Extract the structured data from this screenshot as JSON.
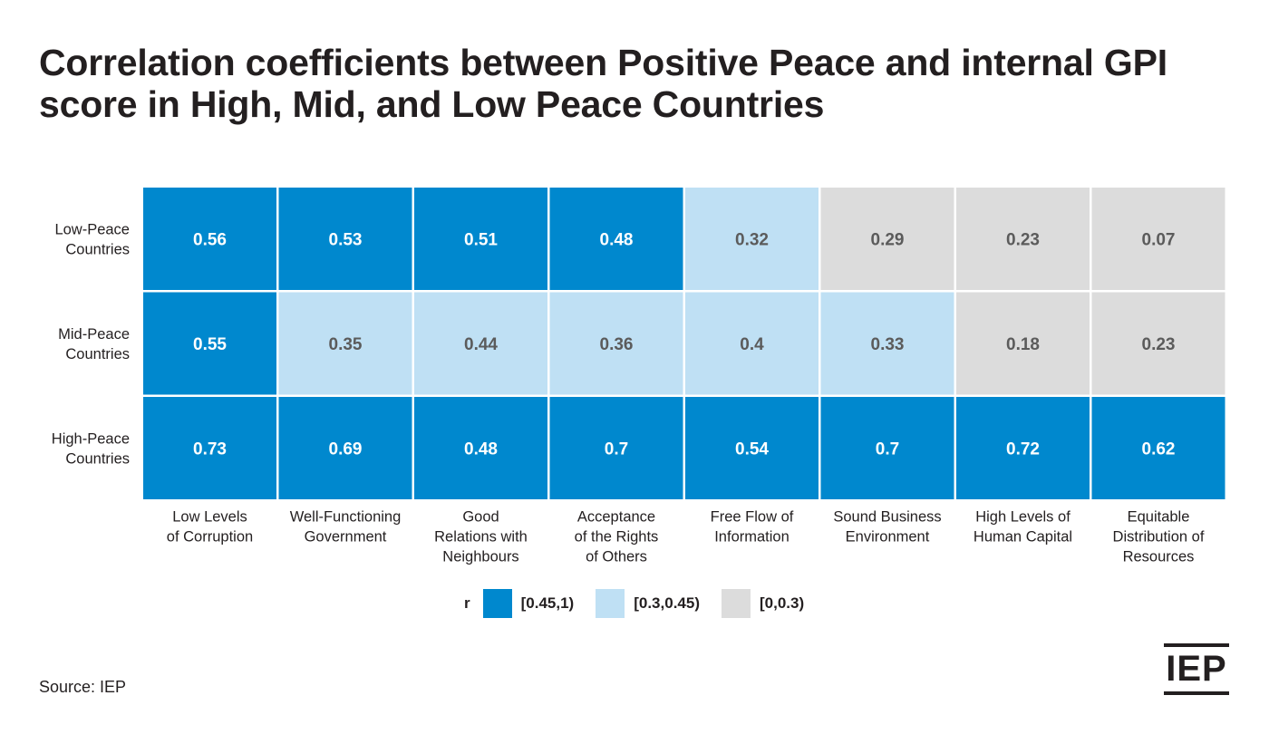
{
  "title": "Correlation coefficients between Positive Peace and internal GPI score in High, Mid, and Low Peace Countries",
  "source": "Source: IEP",
  "logo_text": "IEP",
  "colors": {
    "high": "#0088ce",
    "mid": "#bfe0f4",
    "low": "#dcdcdc",
    "text_on_dark": "#ffffff",
    "text_on_light": "#5b5b5b"
  },
  "legend": {
    "title": "r",
    "items": [
      {
        "label": "[0.45,1)",
        "color": "#0088ce"
      },
      {
        "label": "[0.3,0.45)",
        "color": "#bfe0f4"
      },
      {
        "label": "[0,0.3)",
        "color": "#dcdcdc"
      }
    ]
  },
  "chart_data": {
    "type": "heatmap",
    "title": "Correlation coefficients between Positive Peace and internal GPI score in High, Mid, and Low Peace Countries",
    "rows": [
      {
        "label": "Low-Peace Countries",
        "lines": [
          "Low-Peace",
          "Countries"
        ]
      },
      {
        "label": "Mid-Peace Countries",
        "lines": [
          "Mid-Peace",
          "Countries"
        ]
      },
      {
        "label": "High-Peace Countries",
        "lines": [
          "High-Peace",
          "Countries"
        ]
      }
    ],
    "columns": [
      {
        "label": "Low Levels of Corruption",
        "lines": [
          "Low Levels",
          "of Corruption"
        ]
      },
      {
        "label": "Well-Functioning Government",
        "lines": [
          "Well-Functioning",
          "Government"
        ]
      },
      {
        "label": "Good Relations with Neighbours",
        "lines": [
          "Good",
          "Relations with",
          "Neighbours"
        ]
      },
      {
        "label": "Acceptance of the Rights of Others",
        "lines": [
          "Acceptance",
          "of the Rights",
          "of Others"
        ]
      },
      {
        "label": "Free Flow of Information",
        "lines": [
          "Free Flow of",
          "Information"
        ]
      },
      {
        "label": "Sound Business Environment",
        "lines": [
          "Sound Business",
          "Environment"
        ]
      },
      {
        "label": "High Levels of Human Capital",
        "lines": [
          "High Levels of",
          "Human Capital"
        ]
      },
      {
        "label": "Equitable Distribution of Resources",
        "lines": [
          "Equitable",
          "Distribution of",
          "Resources"
        ]
      }
    ],
    "values": [
      [
        0.56,
        0.53,
        0.51,
        0.48,
        0.32,
        0.29,
        0.23,
        0.07
      ],
      [
        0.55,
        0.35,
        0.44,
        0.36,
        0.4,
        0.33,
        0.18,
        0.23
      ],
      [
        0.73,
        0.69,
        0.48,
        0.7,
        0.54,
        0.7,
        0.72,
        0.62
      ]
    ],
    "bins": [
      {
        "min": 0.45,
        "max": 1,
        "label": "[0.45,1)",
        "color": "#0088ce"
      },
      {
        "min": 0.3,
        "max": 0.45,
        "label": "[0.3,0.45)",
        "color": "#bfe0f4"
      },
      {
        "min": 0,
        "max": 0.3,
        "label": "[0,0.3)",
        "color": "#dcdcdc"
      }
    ]
  }
}
